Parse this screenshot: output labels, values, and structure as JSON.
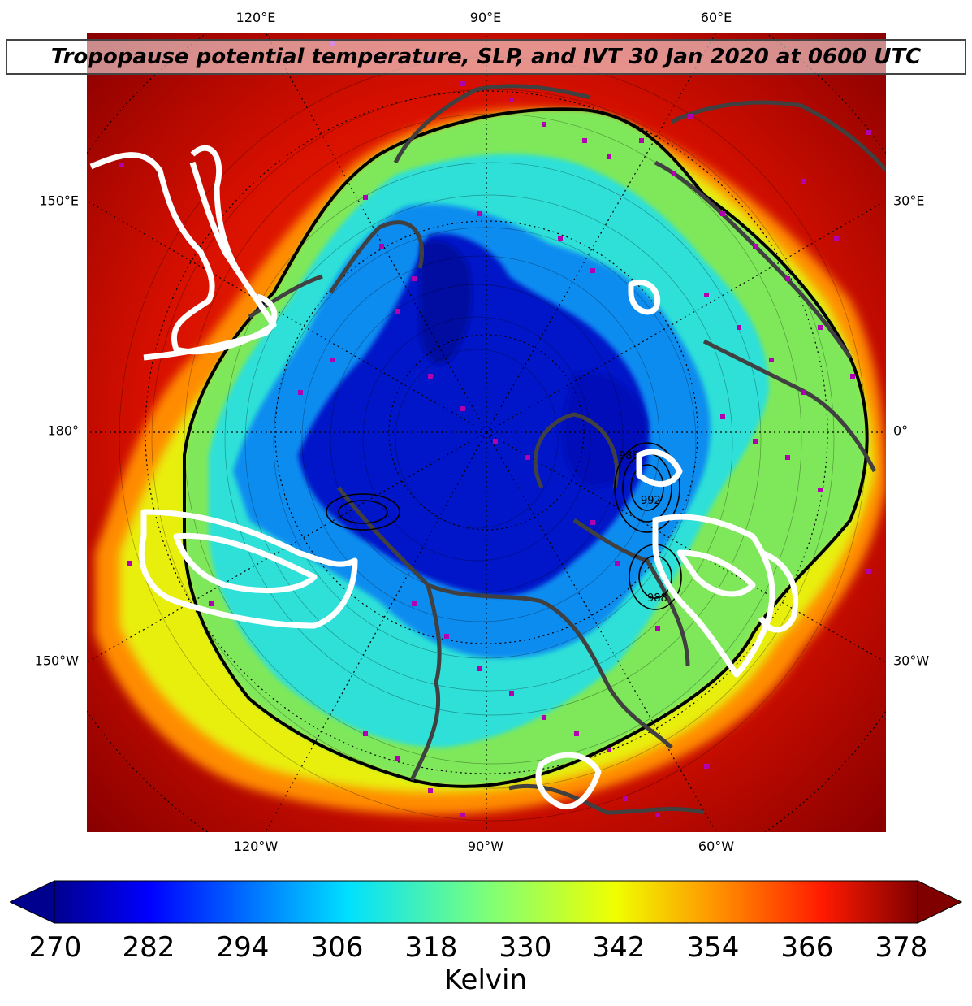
{
  "title": "Tropopause potential temperature, SLP, and IVT 30 Jan 2020 at 0600 UTC",
  "ticks": {
    "top": [
      "120°E",
      "90°E",
      "60°E"
    ],
    "bottom": [
      "120°W",
      "90°W",
      "60°W"
    ],
    "left": [
      "150°E",
      "180°",
      "150°W"
    ],
    "right": [
      "30°E",
      "0°",
      "30°W"
    ]
  },
  "colorbar": {
    "min": 270,
    "max": 378,
    "labels": [
      "270",
      "282",
      "294",
      "306",
      "318",
      "330",
      "342",
      "354",
      "366",
      "378"
    ],
    "unit": "Kelvin",
    "colormap": "jet",
    "extend": "both"
  },
  "map": {
    "projection": "north polar stereographic",
    "field": "tropopause potential temperature",
    "slp_contour_labels": [
      "988",
      "992",
      "988"
    ],
    "ivt_contour_color": "#ffffff",
    "coastline_color": "#404040",
    "station_marker_color": "#b000b0"
  }
}
